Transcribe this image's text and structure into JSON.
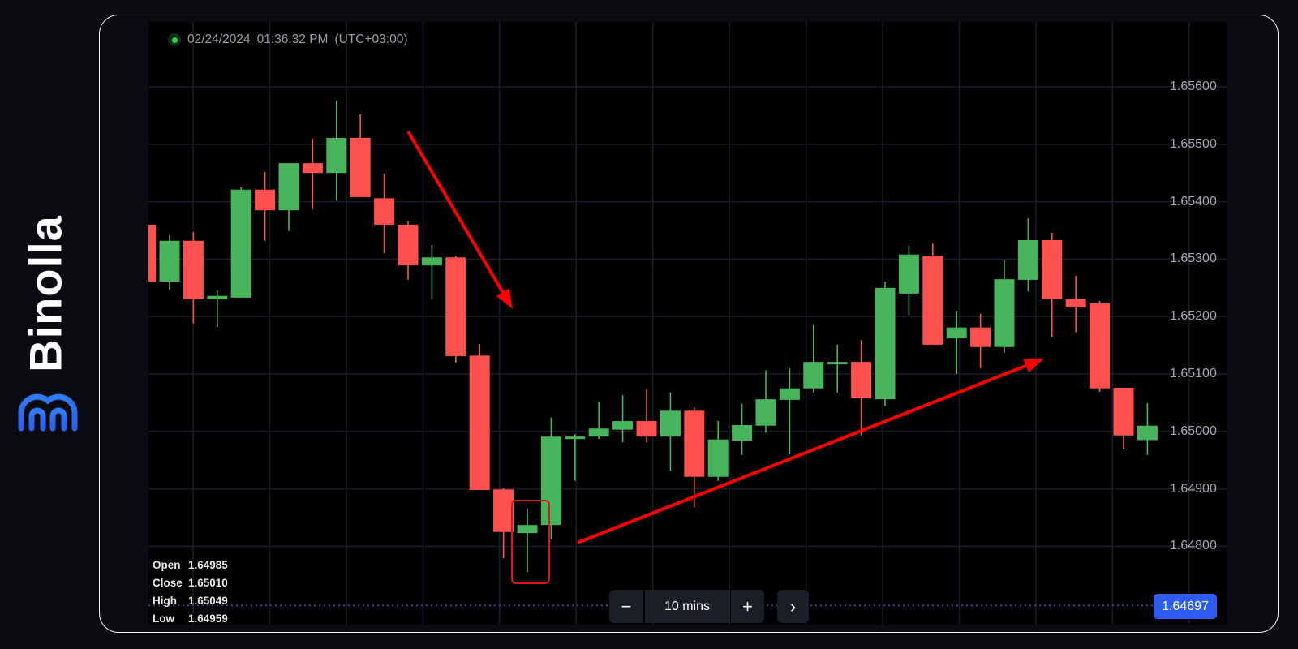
{
  "brand": {
    "name": "Binolla",
    "color": "#2f6bf0",
    "icon": "binolla-arches-logo"
  },
  "header": {
    "status_icon": "live-dot-icon",
    "date": "02/24/2024",
    "time": "01:36:32 PM",
    "timezone": "(UTC+03:00)"
  },
  "ohlc": [
    {
      "label": "Open",
      "value": "1.64985"
    },
    {
      "label": "Close",
      "value": "1.65010"
    },
    {
      "label": "High",
      "value": "1.65049"
    },
    {
      "label": "Low",
      "value": "1.64959"
    }
  ],
  "controls": {
    "minus": "−",
    "interval": "10 mins",
    "plus": "+",
    "next": "›"
  },
  "current_price": "1.64697",
  "colors": {
    "up": "#48b55c",
    "down": "#ff5050",
    "annotation": "#ff0000",
    "badge": "#2f5cf0",
    "grid": "#1b1c2a"
  },
  "chart_data": {
    "type": "candlestick",
    "interval": "10 mins",
    "ylim": [
      1.6469,
      1.6562
    ],
    "y_ticks": [
      "1.65600",
      "1.65500",
      "1.65400",
      "1.65300",
      "1.65200",
      "1.65100",
      "1.65000",
      "1.64900",
      "1.64800"
    ],
    "grid": true,
    "current_price": 1.64697,
    "candles_ohlc": [
      [
        1.6536,
        1.65362,
        1.65259,
        1.65261
      ],
      [
        1.65261,
        1.65342,
        1.65247,
        1.65332
      ],
      [
        1.65332,
        1.65347,
        1.65188,
        1.6523
      ],
      [
        1.6523,
        1.65245,
        1.65182,
        1.65236
      ],
      [
        1.65233,
        1.65425,
        1.65233,
        1.65421
      ],
      [
        1.65421,
        1.65452,
        1.65332,
        1.65385
      ],
      [
        1.65385,
        1.65467,
        1.65349,
        1.65467
      ],
      [
        1.65467,
        1.6551,
        1.65387,
        1.6545
      ],
      [
        1.6545,
        1.65576,
        1.65402,
        1.65511
      ],
      [
        1.65511,
        1.65552,
        1.65408,
        1.65408
      ],
      [
        1.65406,
        1.65449,
        1.6531,
        1.6536
      ],
      [
        1.6536,
        1.65366,
        1.65264,
        1.65289
      ],
      [
        1.65289,
        1.65325,
        1.65231,
        1.65303
      ],
      [
        1.65303,
        1.65306,
        1.6512,
        1.65131
      ],
      [
        1.65132,
        1.65152,
        1.64898,
        1.64898
      ],
      [
        1.64899,
        1.64901,
        1.64779,
        1.64825
      ],
      [
        1.64823,
        1.64866,
        1.64755,
        1.64837
      ],
      [
        1.64837,
        1.65024,
        1.64812,
        1.64991
      ],
      [
        1.6499,
        1.64995,
        1.64914,
        1.64991
      ],
      [
        1.64991,
        1.65051,
        1.64987,
        1.65005
      ],
      [
        1.65003,
        1.65063,
        1.64981,
        1.65018
      ],
      [
        1.65018,
        1.65073,
        1.64981,
        1.64991
      ],
      [
        1.64991,
        1.65068,
        1.64931,
        1.65036
      ],
      [
        1.65036,
        1.65042,
        1.64868,
        1.64921
      ],
      [
        1.64921,
        1.65018,
        1.64914,
        1.64986
      ],
      [
        1.64984,
        1.65048,
        1.64959,
        1.65011
      ],
      [
        1.6501,
        1.65106,
        1.64998,
        1.65056
      ],
      [
        1.65055,
        1.6511,
        1.6496,
        1.65075
      ],
      [
        1.65075,
        1.65185,
        1.65068,
        1.65121
      ],
      [
        1.65117,
        1.65151,
        1.65068,
        1.65121
      ],
      [
        1.65121,
        1.65159,
        1.64993,
        1.65058
      ],
      [
        1.65056,
        1.65261,
        1.65044,
        1.6525
      ],
      [
        1.6524,
        1.65323,
        1.65202,
        1.65308
      ],
      [
        1.65306,
        1.65327,
        1.65151,
        1.65151
      ],
      [
        1.65162,
        1.6521,
        1.651,
        1.65181
      ],
      [
        1.65181,
        1.65205,
        1.6511,
        1.65147
      ],
      [
        1.65147,
        1.65298,
        1.65137,
        1.65265
      ],
      [
        1.65264,
        1.65371,
        1.65244,
        1.65333
      ],
      [
        1.65333,
        1.65346,
        1.65165,
        1.6523
      ],
      [
        1.65231,
        1.65271,
        1.65173,
        1.65216
      ],
      [
        1.65223,
        1.65227,
        1.65069,
        1.65075
      ],
      [
        1.65076,
        1.65076,
        1.6497,
        1.64993
      ],
      [
        1.64985,
        1.65049,
        1.64959,
        1.6501
      ]
    ],
    "annotations": [
      {
        "type": "arrow",
        "meaning": "downtrend"
      },
      {
        "type": "highlight-box",
        "candle_index": 16
      },
      {
        "type": "arrow",
        "meaning": "uptrend"
      }
    ]
  }
}
